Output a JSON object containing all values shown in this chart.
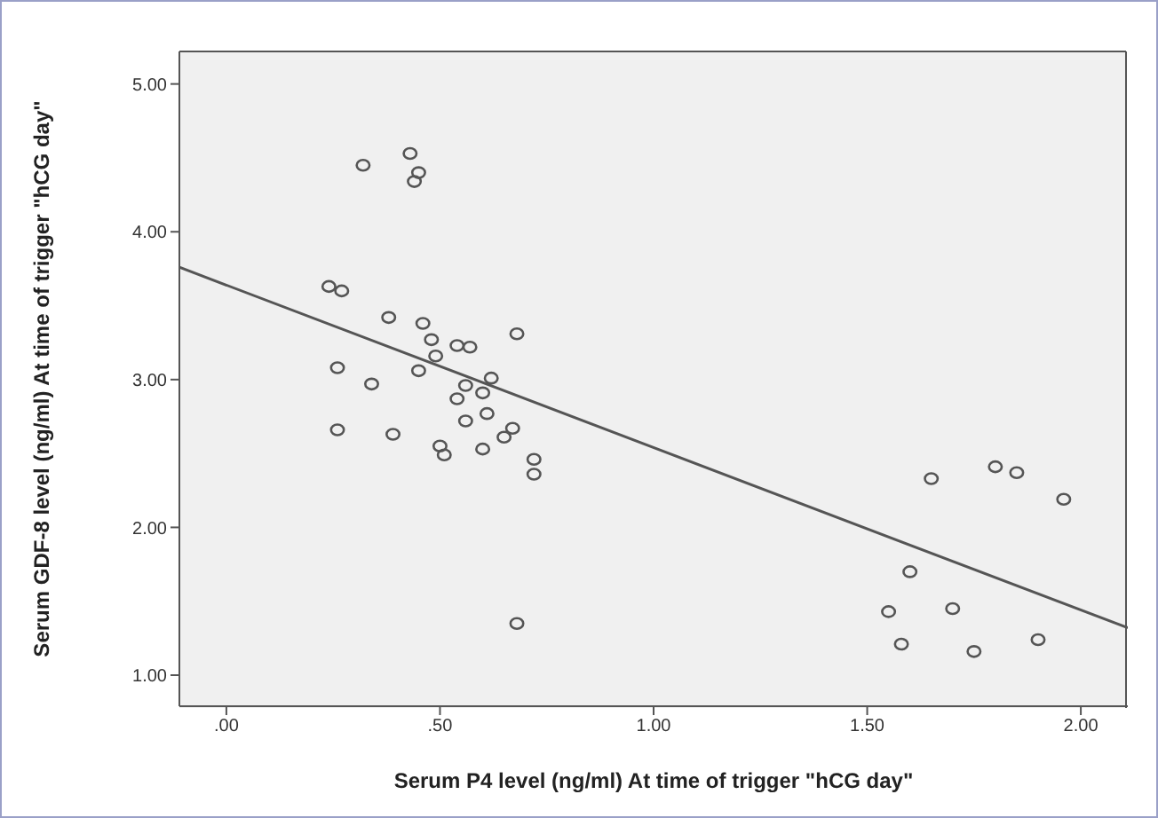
{
  "chart_data": {
    "type": "scatter",
    "xlabel": "Serum P4 level (ng/ml) At time of trigger \"hCG day\"",
    "ylabel": "Serum GDF-8 level (ng/ml) At time of trigger \"hCG day\"",
    "xlim": [
      -0.11,
      2.11
    ],
    "ylim": [
      0.79,
      5.22
    ],
    "xticks": [
      {
        "value": 0,
        "label": ".00"
      },
      {
        "value": 0.5,
        "label": ".50"
      },
      {
        "value": 1,
        "label": "1.00"
      },
      {
        "value": 1.5,
        "label": "1.50"
      },
      {
        "value": 2,
        "label": "2.00"
      }
    ],
    "yticks": [
      {
        "value": 1,
        "label": "1.00"
      },
      {
        "value": 2,
        "label": "2.00"
      },
      {
        "value": 3,
        "label": "3.00"
      },
      {
        "value": 4,
        "label": "4.00"
      },
      {
        "value": 5,
        "label": "5.00"
      }
    ],
    "grid": false,
    "legend": false,
    "marker": "circle",
    "series": [
      {
        "color": "#555555",
        "x": [
          0.32,
          0.43,
          0.45,
          0.44,
          0.24,
          0.27,
          0.26,
          0.26,
          0.34,
          0.38,
          0.46,
          0.48,
          0.54,
          0.57,
          0.68,
          0.49,
          0.45,
          0.62,
          0.56,
          0.6,
          0.54,
          0.61,
          0.56,
          0.39,
          0.67,
          0.65,
          0.5,
          0.51,
          0.6,
          0.72,
          0.72,
          0.68,
          1.65,
          1.8,
          1.85,
          1.96,
          1.6,
          1.55,
          1.7,
          1.58,
          1.75,
          1.9
        ],
        "values": [
          4.45,
          4.53,
          4.4,
          4.34,
          3.63,
          3.6,
          3.08,
          2.66,
          2.97,
          3.42,
          3.38,
          3.27,
          3.23,
          3.22,
          3.31,
          3.16,
          3.06,
          3.01,
          2.96,
          2.91,
          2.87,
          2.77,
          2.72,
          2.63,
          2.67,
          2.61,
          2.55,
          2.49,
          2.53,
          2.46,
          2.36,
          1.35,
          2.33,
          2.41,
          2.37,
          2.19,
          1.7,
          1.43,
          1.45,
          1.21,
          1.16,
          1.24
        ]
      },
      {
        "type": "line",
        "color": "#555555",
        "x": [
          -0.11,
          2.11
        ],
        "values": [
          3.76,
          1.32
        ],
        "marker": "none",
        "line_style": "solid"
      }
    ]
  }
}
